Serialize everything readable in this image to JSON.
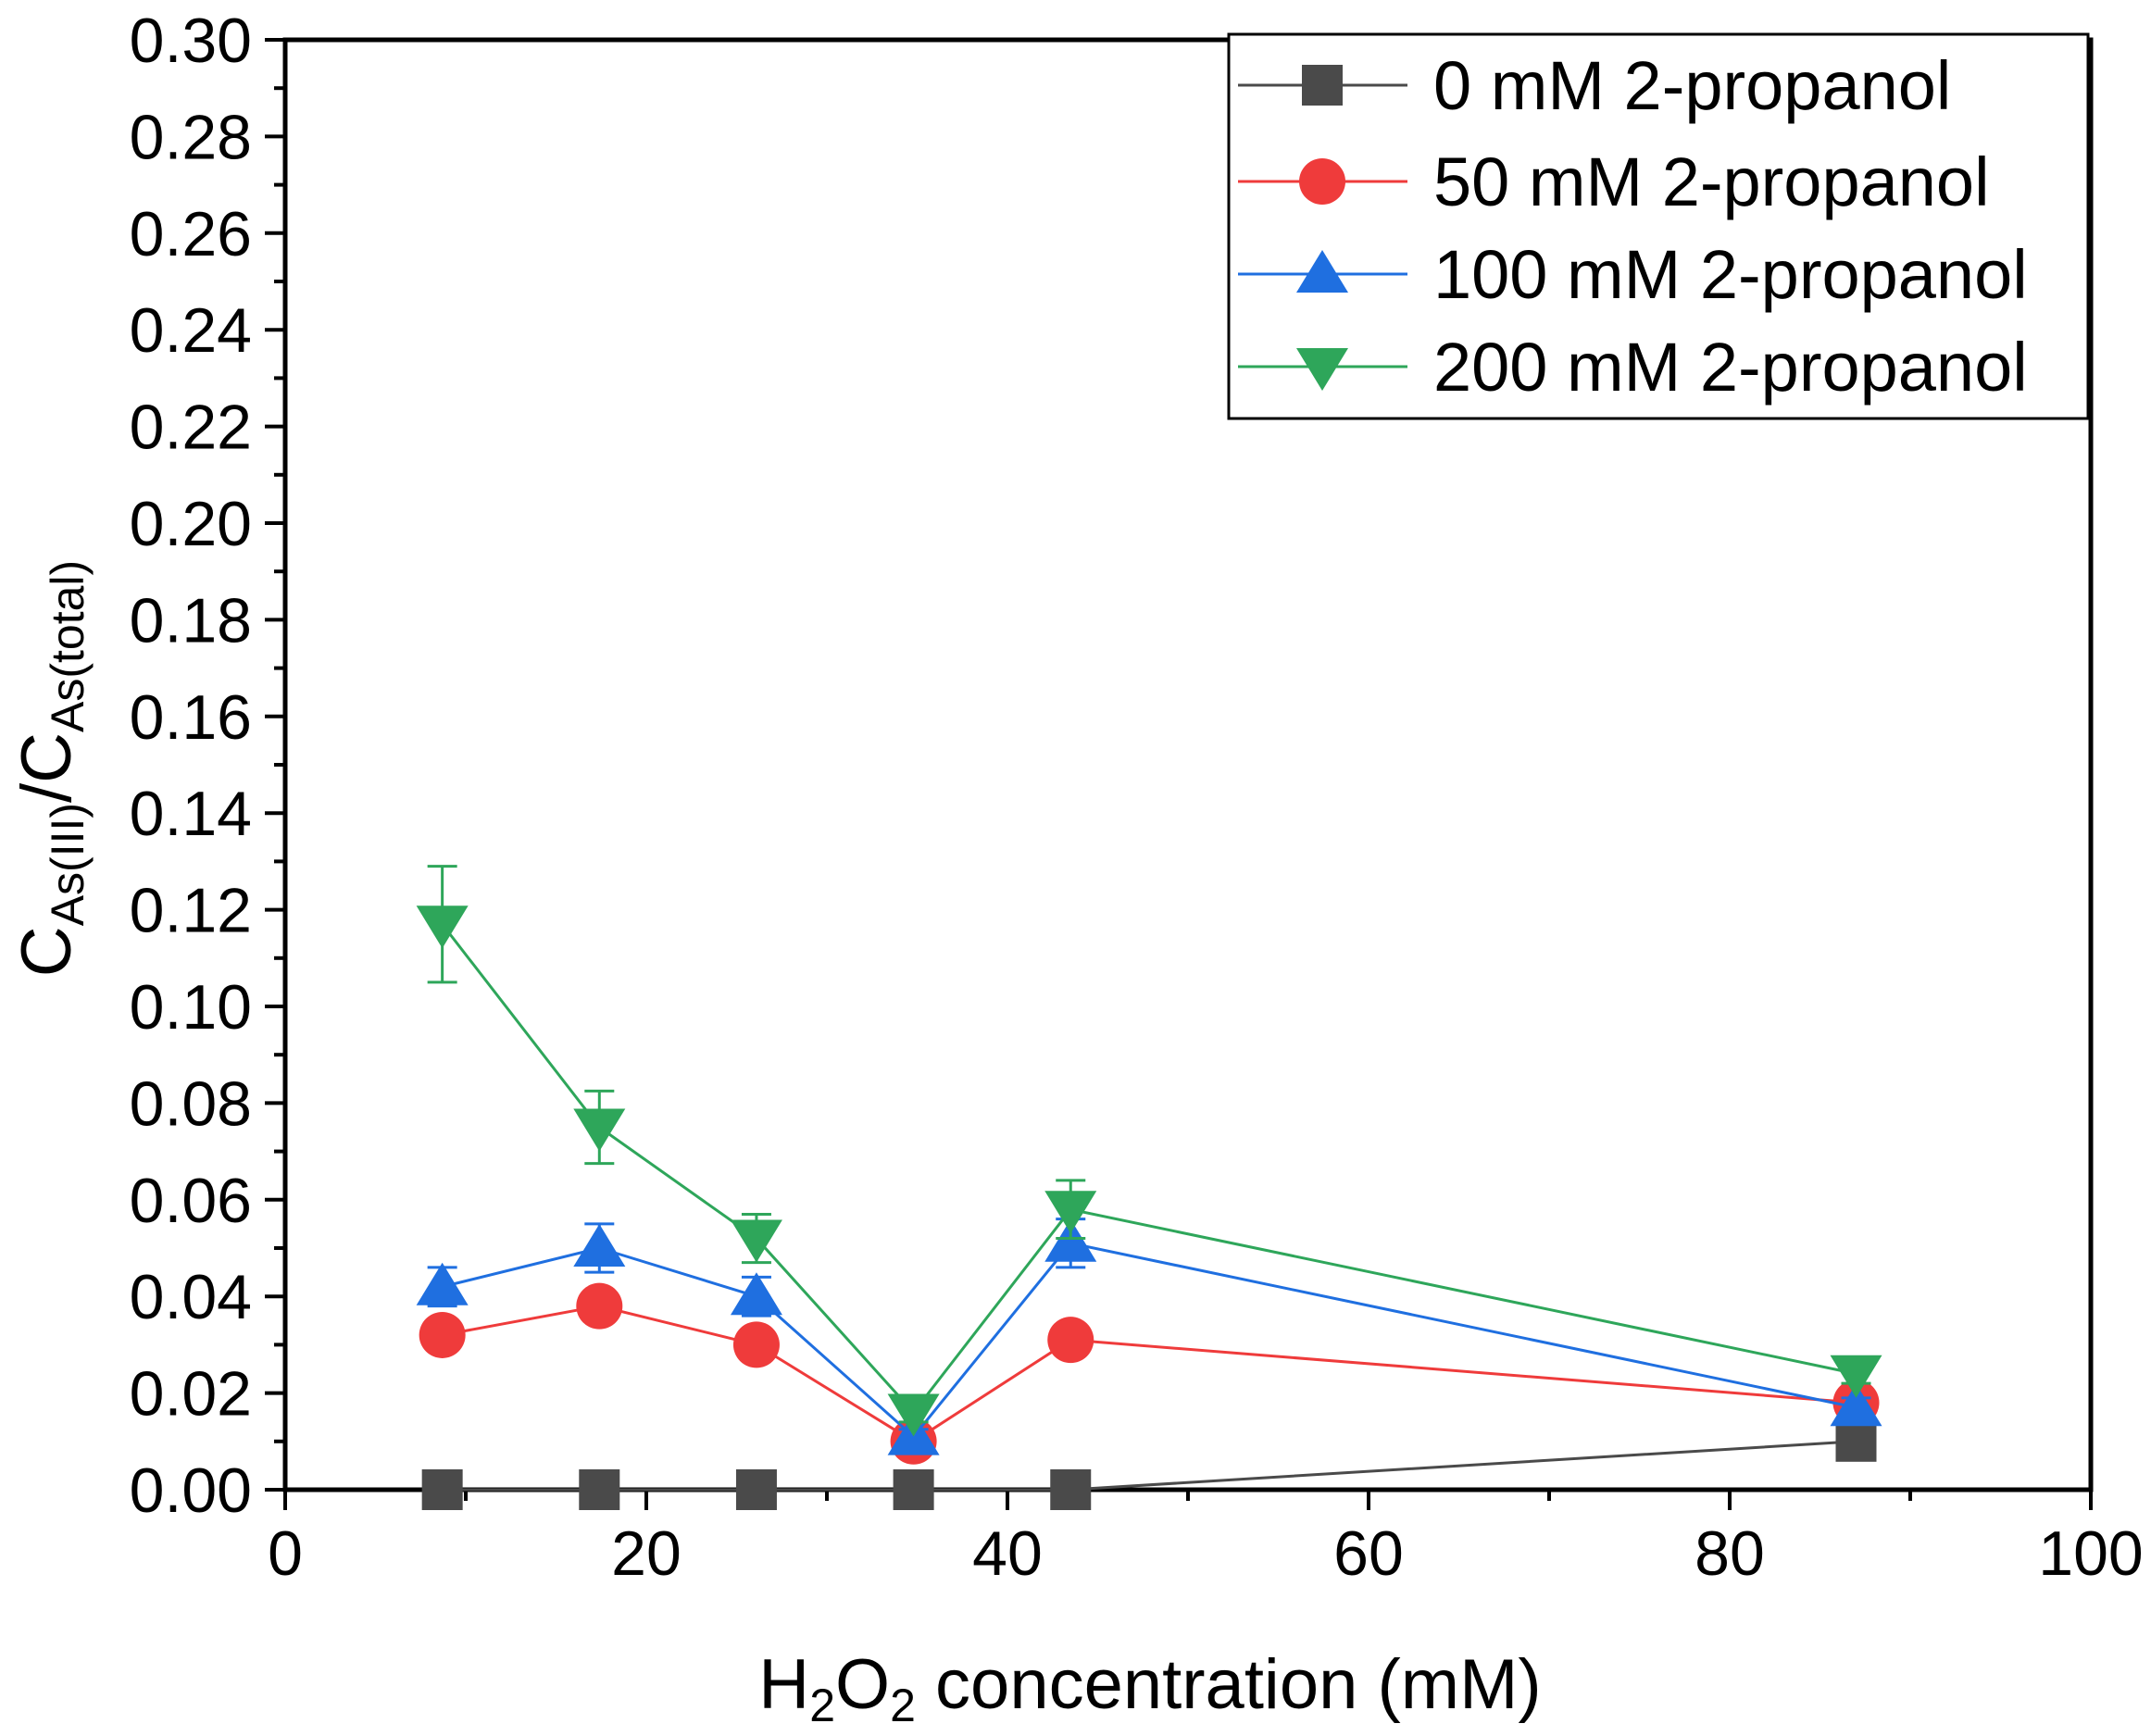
{
  "chart_data": {
    "type": "line",
    "title": "",
    "xlabel": {
      "main": "H",
      "sub1": "2",
      "mid": "O",
      "sub2": "2",
      "rest": " concentration (mM)"
    },
    "ylabel": {
      "c1": "C",
      "sub1": "As(III)",
      "sep": "/C",
      "sub2": "As(total)"
    },
    "xlim": [
      0,
      100
    ],
    "ylim": [
      0,
      0.3
    ],
    "x_ticks": [
      0,
      20,
      40,
      60,
      80,
      100
    ],
    "x_tick_labels": [
      "0",
      "20",
      "40",
      "60",
      "80",
      "100"
    ],
    "y_ticks": [
      0,
      0.02,
      0.04,
      0.06,
      0.08,
      0.1,
      0.12,
      0.14,
      0.16,
      0.18,
      0.2,
      0.22,
      0.24,
      0.26,
      0.28,
      0.3
    ],
    "y_tick_labels": [
      "0.00",
      "0.02",
      "0.04",
      "0.06",
      "0.08",
      "0.10",
      "0.12",
      "0.14",
      "0.16",
      "0.18",
      "0.20",
      "0.22",
      "0.24",
      "0.26",
      "0.28",
      "0.30"
    ],
    "legend_position": "top-right",
    "series": [
      {
        "name": "0 mM 2-propanol",
        "color": "#4a4a4a",
        "marker": "square",
        "x": [
          8.7,
          17.4,
          26.1,
          34.8,
          43.5,
          87.0
        ],
        "y": [
          0.0,
          0.0,
          0.0,
          0.0,
          0.0,
          0.01
        ],
        "err": [
          0,
          0,
          0,
          0,
          0,
          0
        ]
      },
      {
        "name": "50 mM 2-propanol",
        "color": "#ef3b3b",
        "marker": "circle",
        "x": [
          8.7,
          17.4,
          26.1,
          34.8,
          43.5,
          87.0
        ],
        "y": [
          0.032,
          0.038,
          0.03,
          0.01,
          0.031,
          0.018
        ],
        "err": [
          0.0025,
          0.003,
          0.002,
          0.001,
          0.002,
          0.0015
        ]
      },
      {
        "name": "100 mM 2-propanol",
        "color": "#1f6fe0",
        "marker": "triangle-up",
        "x": [
          8.7,
          17.4,
          26.1,
          34.8,
          43.5,
          87.0
        ],
        "y": [
          0.042,
          0.05,
          0.04,
          0.011,
          0.051,
          0.017
        ],
        "err": [
          0.004,
          0.005,
          0.004,
          0.0015,
          0.005,
          0.002
        ]
      },
      {
        "name": "200 mM 2-propanol",
        "color": "#2ea65a",
        "marker": "triangle-down",
        "x": [
          8.7,
          17.4,
          26.1,
          34.8,
          43.5,
          87.0
        ],
        "y": [
          0.117,
          0.075,
          0.052,
          0.016,
          0.058,
          0.024
        ],
        "err": [
          0.012,
          0.0075,
          0.005,
          0.002,
          0.006,
          0.002
        ]
      }
    ]
  }
}
